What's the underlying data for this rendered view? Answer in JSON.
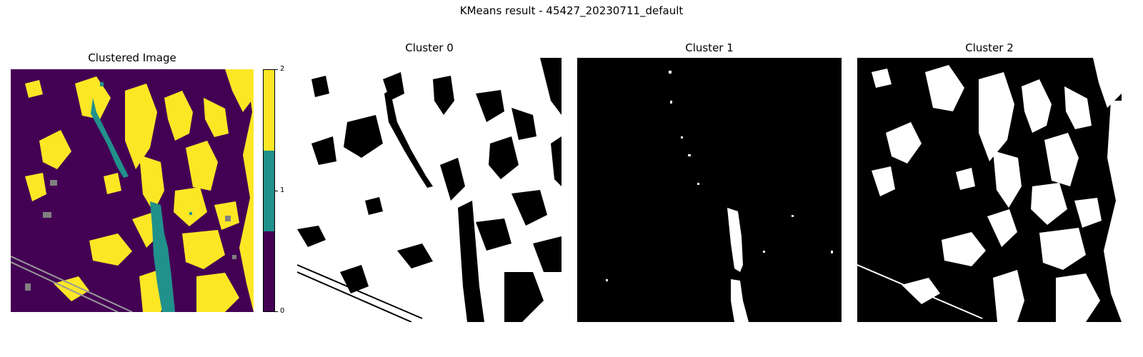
{
  "figure": {
    "title": "KMeans result - 45427_20230711_default"
  },
  "chart_data": [
    {
      "type": "heatmap",
      "title": "Clustered Image",
      "colormap": "viridis",
      "colorbar": {
        "ticks": [
          "0",
          "1",
          "2"
        ],
        "range": [
          0,
          2
        ],
        "colors": [
          "#440154",
          "#21918c",
          "#fde725"
        ]
      },
      "no_data_color": "#808080",
      "axes": "off"
    },
    {
      "type": "heatmap",
      "title": "Cluster 0",
      "colormap": "binary mask",
      "colors": [
        "#000000",
        "#ffffff"
      ],
      "axes": "off"
    },
    {
      "type": "heatmap",
      "title": "Cluster 1",
      "colormap": "binary mask",
      "colors": [
        "#000000",
        "#ffffff"
      ],
      "axes": "off"
    },
    {
      "type": "heatmap",
      "title": "Cluster 2",
      "colormap": "binary mask",
      "colors": [
        "#000000",
        "#ffffff"
      ],
      "axes": "off"
    }
  ]
}
